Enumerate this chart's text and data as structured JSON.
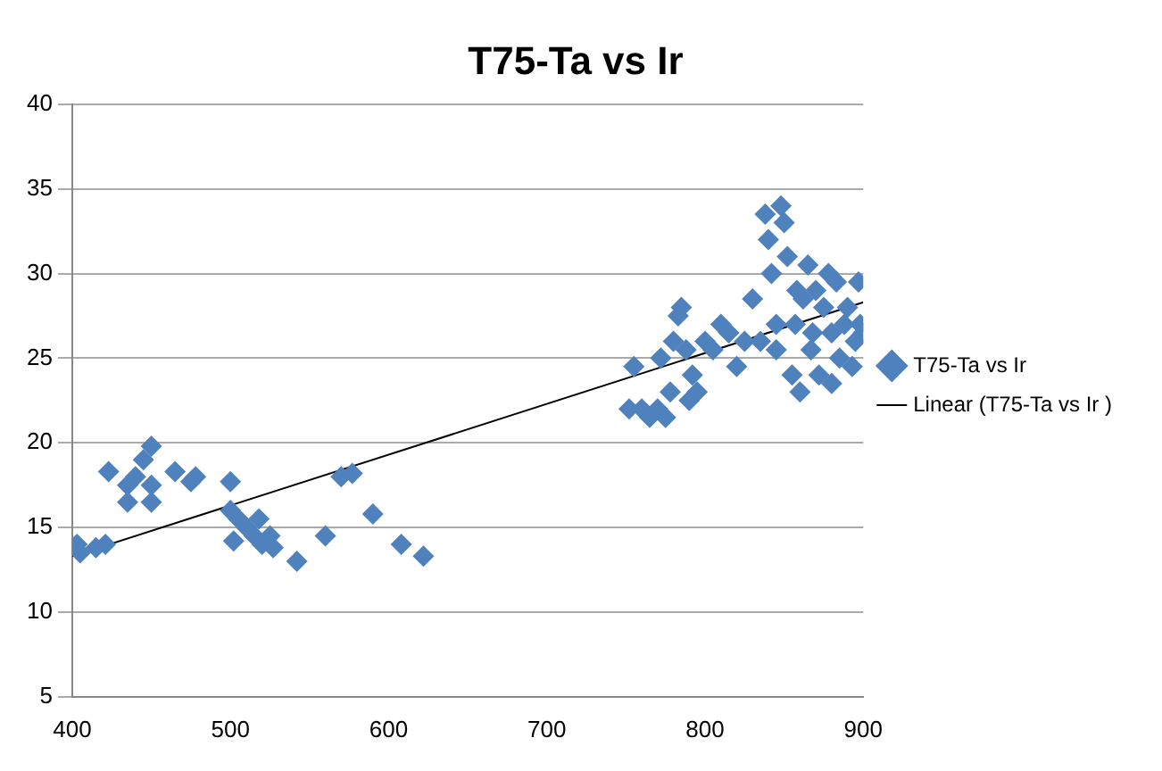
{
  "chart_data": {
    "type": "scatter",
    "title": "T75-Ta vs Ir",
    "xlim": [
      400,
      900
    ],
    "xticks": [
      400,
      500,
      600,
      700,
      800,
      900
    ],
    "ylim": [
      5,
      40
    ],
    "yticks": [
      5,
      10,
      15,
      20,
      25,
      30,
      35,
      40
    ],
    "grid": "y",
    "legend": "right",
    "marker": "diamond",
    "series": [
      {
        "name": "T75-Ta vs Ir",
        "color": "#4f81bd",
        "x": [
          403,
          405,
          415,
          421,
          423,
          435,
          435,
          440,
          445,
          450,
          450,
          450,
          465,
          475,
          478,
          500,
          500,
          502,
          505,
          510,
          515,
          518,
          520,
          525,
          527,
          542,
          560,
          570,
          577,
          590,
          608,
          622,
          752,
          755,
          760,
          765,
          770,
          772,
          775,
          778,
          780,
          783,
          785,
          788,
          790,
          792,
          795,
          800,
          805,
          810,
          815,
          820,
          825,
          830,
          835,
          838,
          840,
          842,
          845,
          848,
          850,
          852,
          855,
          857,
          860,
          862,
          865,
          867,
          870,
          872,
          875,
          878,
          880,
          883,
          885,
          888,
          890,
          893,
          895,
          897,
          898,
          900,
          858,
          845,
          868,
          880
        ],
        "values": [
          14,
          13.5,
          13.8,
          14,
          18.3,
          16.5,
          17.5,
          18,
          19,
          19.8,
          17.5,
          16.5,
          18.3,
          17.7,
          18,
          17.7,
          16,
          14.2,
          15.5,
          15,
          14.5,
          15.5,
          14,
          14.5,
          13.8,
          13,
          14.5,
          18,
          18.2,
          15.8,
          14,
          13.3,
          22,
          24.5,
          22,
          21.5,
          22,
          25,
          21.5,
          23,
          26,
          27.5,
          28,
          25.5,
          22.5,
          24,
          23,
          26,
          25.5,
          27,
          26.5,
          24.5,
          26,
          28.5,
          26,
          33.5,
          32,
          30,
          27,
          34,
          33,
          31,
          24,
          27,
          23,
          28.5,
          30.5,
          25.5,
          29,
          24,
          28,
          30,
          26.5,
          29.5,
          25,
          27,
          28,
          24.5,
          26,
          29.5,
          27,
          26.5,
          29,
          25.5,
          26.5,
          23.5
        ]
      },
      {
        "name": "Linear (T75-Ta vs Ir )",
        "type": "line",
        "color": "#000000",
        "marker": "none",
        "x": [
          400,
          900
        ],
        "values": [
          13.3,
          28.3
        ]
      }
    ]
  }
}
